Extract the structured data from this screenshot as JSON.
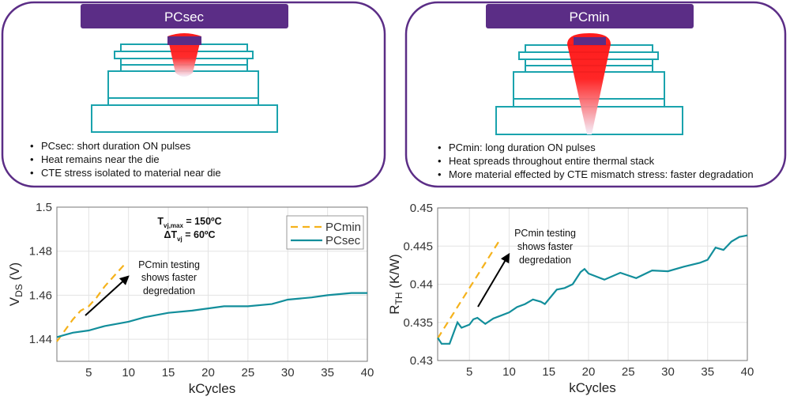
{
  "colors": {
    "panel_border": "#5b2d86",
    "header_bg": "#5b2d86",
    "stack": "#1aa3ad",
    "heat": "#ff1a1a",
    "pcsec_line": "#128e9b",
    "pcmin_line": "#f5b21b",
    "grid": "#e3e3e3"
  },
  "panels": [
    {
      "title": "PCsec",
      "bullets": [
        "PCsec: short duration ON pulses",
        "Heat remains near the die",
        "CTE stress isolated to material near die"
      ]
    },
    {
      "title": "PCmin",
      "bullets": [
        "PCmin: long duration ON pulses",
        "Heat spreads throughout entire thermal stack",
        "More material effected by CTE mismatch stress: faster degradation"
      ]
    }
  ],
  "chart_data": [
    {
      "type": "line",
      "xlabel": "kCycles",
      "ylabel": {
        "main": "V",
        "sub": "DS",
        "unit": " (V)"
      },
      "xlim": [
        1,
        40
      ],
      "ylim": [
        1.43,
        1.5
      ],
      "xticks": [
        5,
        10,
        15,
        20,
        25,
        30,
        35,
        40
      ],
      "yticks": [
        1.44,
        1.46,
        1.48,
        1.5
      ],
      "ytick_labels": [
        "1.44",
        "1.46",
        "1.48",
        "1.5"
      ],
      "grid": true,
      "legend": "top-right",
      "conditions": [
        {
          "main": "T",
          "sub": "vj,max",
          "rest": " = 150ºC"
        },
        {
          "main": "ΔT",
          "sub": "vj",
          "rest": " = 60ºC"
        }
      ],
      "annotation": [
        "PCmin testing",
        "shows faster",
        "degredation"
      ],
      "series": [
        {
          "name": "PCmin",
          "style": "dashed",
          "x": [
            1,
            2,
            3,
            4,
            5,
            6,
            7,
            8,
            9,
            9.5
          ],
          "y": [
            1.439,
            1.444,
            1.449,
            1.453,
            1.455,
            1.459,
            1.464,
            1.468,
            1.472,
            1.474
          ]
        },
        {
          "name": "PCsec",
          "style": "solid",
          "x": [
            1,
            2,
            3,
            5,
            7,
            10,
            12,
            15,
            18,
            20,
            22,
            25,
            28,
            30,
            33,
            35,
            38,
            40
          ],
          "y": [
            1.441,
            1.442,
            1.443,
            1.444,
            1.446,
            1.448,
            1.45,
            1.452,
            1.453,
            1.454,
            1.455,
            1.455,
            1.456,
            1.458,
            1.459,
            1.46,
            1.461,
            1.461
          ]
        }
      ]
    },
    {
      "type": "line",
      "xlabel": "kCycles",
      "ylabel": {
        "main": "R",
        "sub": "TH",
        "unit": " (K/W)"
      },
      "xlim": [
        1,
        40
      ],
      "ylim": [
        0.43,
        0.45
      ],
      "xticks": [
        5,
        10,
        15,
        20,
        25,
        30,
        35,
        40
      ],
      "yticks": [
        0.43,
        0.435,
        0.44,
        0.445,
        0.45
      ],
      "ytick_labels": [
        "0.43",
        "0.435",
        "0.44",
        "0.445",
        "0.45"
      ],
      "grid": true,
      "annotation": [
        "PCmin testing",
        "shows faster",
        "degredation"
      ],
      "series": [
        {
          "style": "dashed",
          "x": [
            1,
            8.7
          ],
          "y": [
            0.4329,
            0.4456
          ]
        },
        {
          "style": "solid",
          "x": [
            1,
            1.5,
            2.5,
            3.5,
            4,
            5,
            5.5,
            6,
            7,
            8,
            10,
            11,
            12,
            13,
            14,
            14.5,
            16,
            17,
            18,
            19,
            19.5,
            20,
            22,
            24,
            26,
            28,
            30,
            32,
            34,
            35,
            36,
            37,
            38,
            39,
            40
          ],
          "y": [
            0.433,
            0.4322,
            0.4322,
            0.435,
            0.4343,
            0.4347,
            0.4354,
            0.4356,
            0.4348,
            0.4355,
            0.4363,
            0.437,
            0.4374,
            0.438,
            0.4377,
            0.4374,
            0.4393,
            0.4395,
            0.44,
            0.4416,
            0.442,
            0.4414,
            0.4406,
            0.4415,
            0.4408,
            0.4418,
            0.4417,
            0.4423,
            0.4428,
            0.4432,
            0.4448,
            0.4445,
            0.4456,
            0.4462,
            0.4464
          ]
        }
      ]
    }
  ]
}
